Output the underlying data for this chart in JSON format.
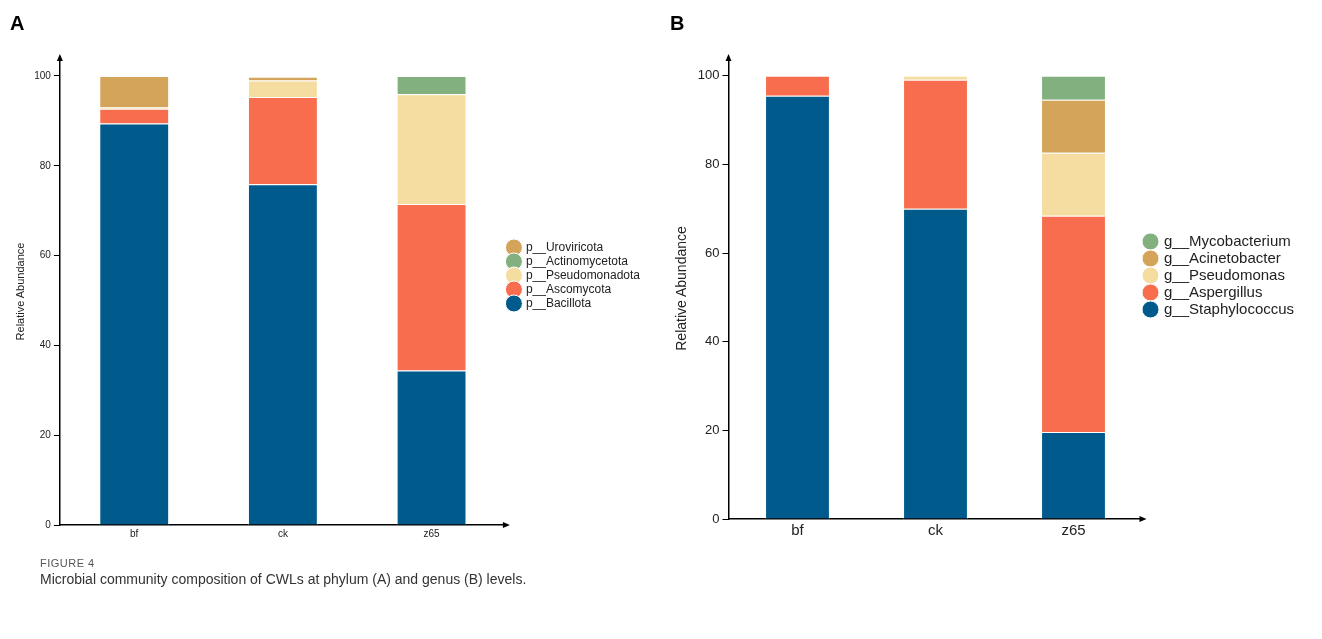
{
  "chart_data": [
    {
      "type": "bar",
      "title": "A",
      "ylabel": "Relative Abundance",
      "categories": [
        "bf",
        "ck",
        "z65"
      ],
      "stacked": true,
      "grid": false,
      "legend": "right",
      "marker": "circle",
      "ylim": [
        0,
        104
      ],
      "yticks": [
        0,
        20,
        40,
        60,
        80,
        100
      ],
      "series": [
        {
          "name": "p__Bacillota",
          "color": "#005b8c",
          "values": [
            89.4,
            75.9,
            34.4
          ]
        },
        {
          "name": "p__Ascomycota",
          "color": "#f76d4d",
          "values": [
            3.3,
            19.4,
            37.1
          ]
        },
        {
          "name": "p__Pseudomonadota",
          "color": "#f5dca0",
          "values": [
            0.3,
            3.7,
            24.4
          ]
        },
        {
          "name": "p__Actinomycetota",
          "color": "#82b07e",
          "values": [
            0,
            null,
            4.1
          ]
        },
        {
          "name": "p__Uroviricota",
          "color": "#d4a45a",
          "values": [
            7.0,
            0.8,
            0
          ]
        }
      ],
      "annotations": [
        "FIGURE 4",
        "Microbial community composition of CWLs at phylum (A) and genus (B) levels."
      ]
    },
    {
      "type": "bar",
      "title": "B",
      "ylabel": "Relative Abundance",
      "categories": [
        "bf",
        "ck",
        "z65"
      ],
      "stacked": true,
      "grid": false,
      "legend": "right",
      "marker": "circle",
      "ylim": [
        0,
        104
      ],
      "yticks": [
        0,
        20,
        40,
        60,
        80,
        100
      ],
      "series": [
        {
          "name": "g__Staphylococcus",
          "color": "#005b8c",
          "values": [
            95.5,
            70.0,
            19.6
          ]
        },
        {
          "name": "g__Aspergillus",
          "color": "#f76d4d",
          "values": [
            4.5,
            29.1,
            48.8
          ]
        },
        {
          "name": "g__Pseudomonas",
          "color": "#f5dca0",
          "values": [
            0,
            0.9,
            14.2
          ]
        },
        {
          "name": "g__Acinetobacter",
          "color": "#d4a45a",
          "values": [
            0,
            0,
            12.0
          ]
        },
        {
          "name": "g__Mycobacterium",
          "color": "#82b07e",
          "values": [
            0,
            0,
            5.4
          ]
        }
      ]
    }
  ]
}
